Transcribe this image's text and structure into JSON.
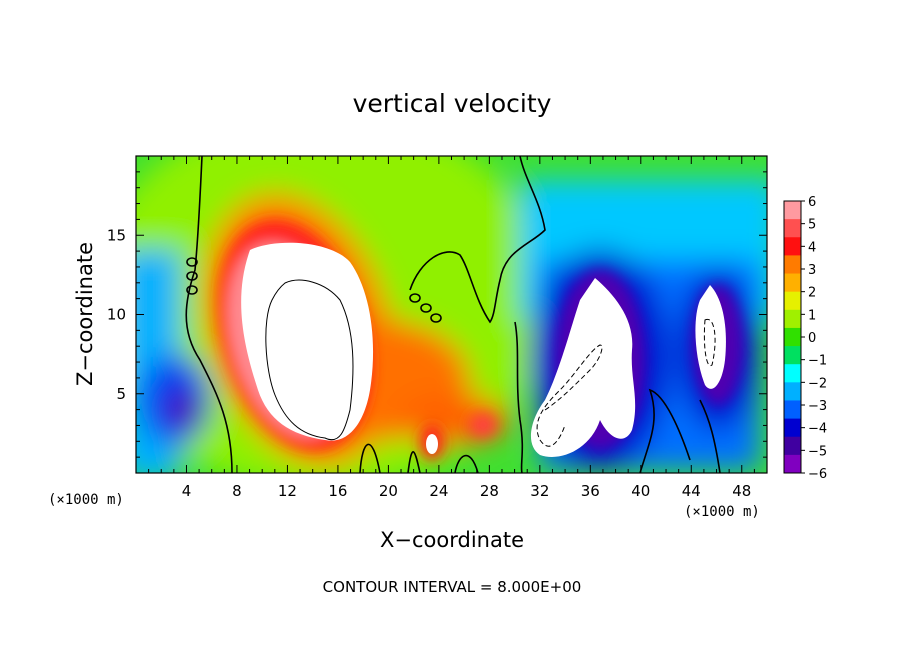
{
  "chart_data": {
    "type": "heatmap",
    "title": "vertical velocity",
    "xlabel": "X−coordinate",
    "ylabel": "Z−coordinate",
    "x_unit": "(×1000 m)",
    "x_unit_right": "(×1000 m)",
    "xlim": [
      0,
      50
    ],
    "ylim": [
      0,
      20
    ],
    "x_ticks": [
      4,
      8,
      12,
      16,
      20,
      24,
      28,
      32,
      36,
      40,
      44,
      48
    ],
    "y_ticks": [
      5,
      10,
      15
    ],
    "colorbar": {
      "min": -6,
      "max": 6,
      "labels": [
        "6",
        "5",
        "4",
        "3",
        "2",
        "1",
        "0",
        "−1",
        "−2",
        "−3",
        "−4",
        "−5",
        "−6"
      ],
      "colors": [
        "#ff9aa0",
        "#ff5050",
        "#ff1010",
        "#ff7b00",
        "#ffb000",
        "#e6f000",
        "#a0f000",
        "#30e000",
        "#00e060",
        "#00ffff",
        "#00b0ff",
        "#0060ff",
        "#0000d0",
        "#4000a0",
        "#8000c0"
      ]
    },
    "features": [
      {
        "kind": "updraft",
        "x": 13.5,
        "z": 8.5,
        "rx": 4.6,
        "rz": 7.2,
        "value": 9
      },
      {
        "kind": "updraft",
        "x": 23.5,
        "z": 2.0,
        "rx": 1.0,
        "rz": 1.5,
        "value": 5
      },
      {
        "kind": "updraft",
        "x": 27.5,
        "z": 3.0,
        "rx": 1.4,
        "rz": 1.2,
        "value": 4
      },
      {
        "kind": "downdraft",
        "x": 36.0,
        "z": 7.0,
        "rx": 3.2,
        "rz": 7.0,
        "value": -9
      },
      {
        "kind": "downdraft",
        "x": 46.0,
        "z": 8.5,
        "rx": 1.8,
        "rz": 4.0,
        "value": -9
      },
      {
        "kind": "downdraft",
        "x": 4.0,
        "z": 4.0,
        "rx": 2.5,
        "rz": 2.5,
        "value": -5
      }
    ],
    "contour_interval": "CONTOUR INTERVAL = 8.000E+00"
  }
}
